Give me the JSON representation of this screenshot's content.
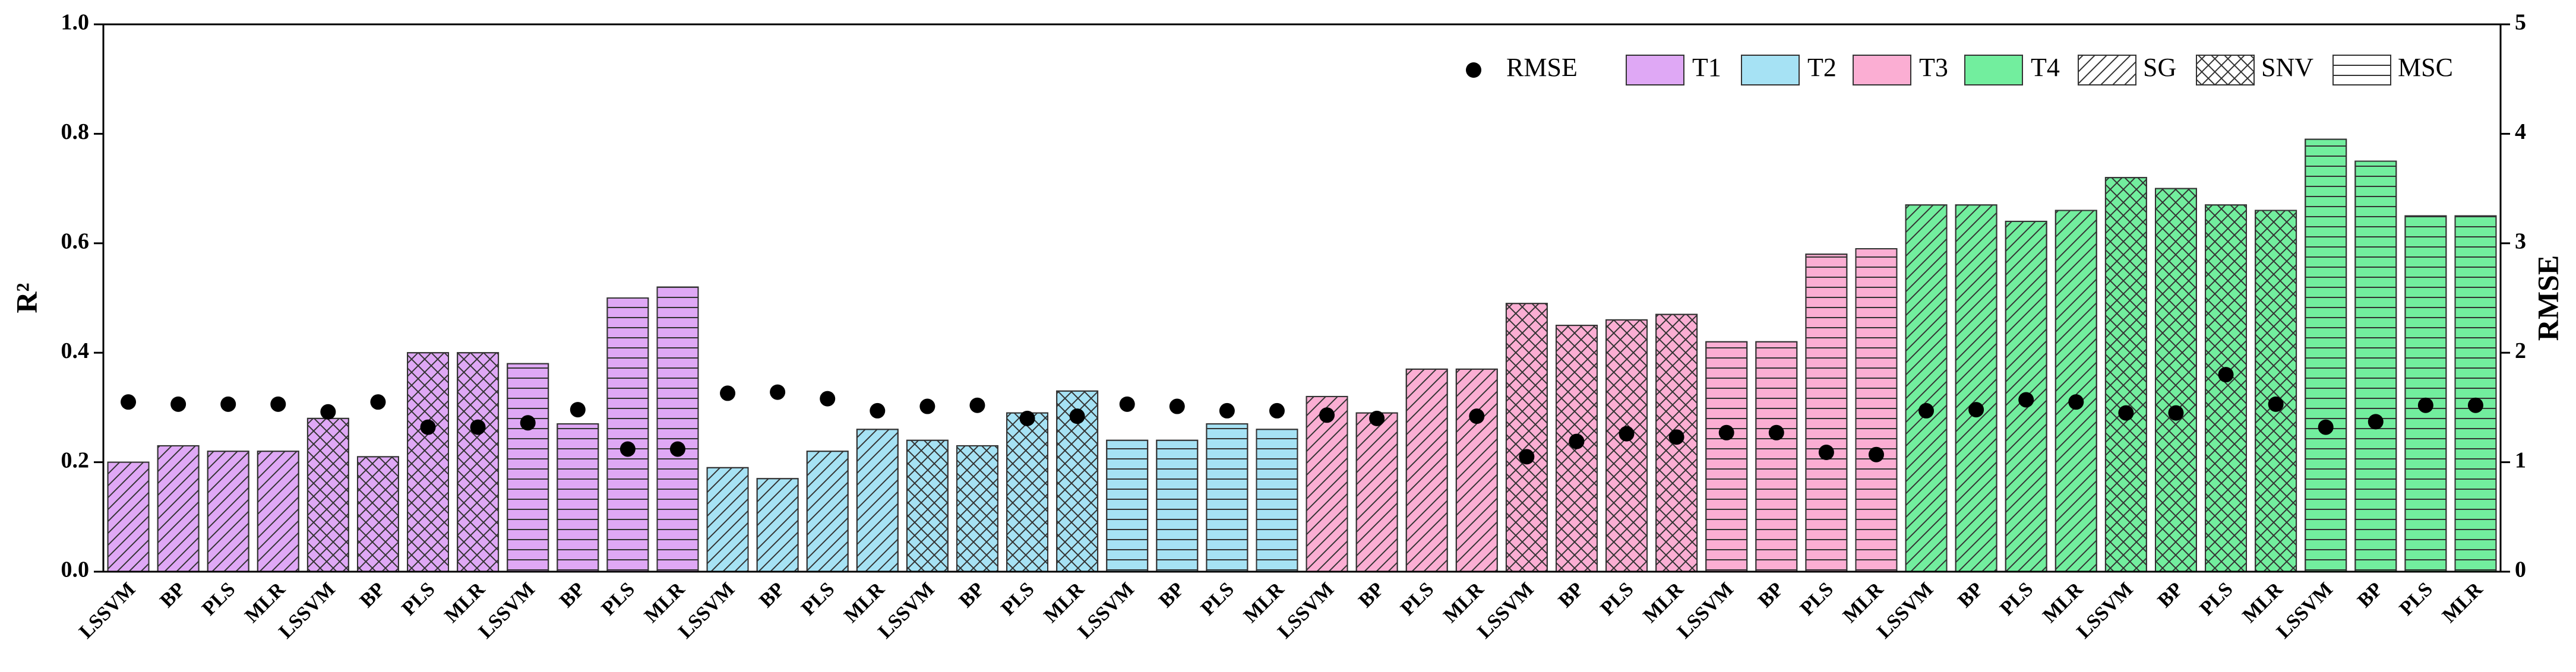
{
  "chart_data": {
    "type": "bar",
    "ylabel": "R²",
    "y2label": "RMSE",
    "categories": [
      "LSSVM",
      "BP",
      "PLS",
      "MLR",
      "LSSVM",
      "BP",
      "PLS",
      "MLR",
      "LSSVM",
      "BP",
      "PLS",
      "MLR",
      "LSSVM",
      "BP",
      "PLS",
      "MLR",
      "LSSVM",
      "BP",
      "PLS",
      "MLR",
      "LSSVM",
      "BP",
      "PLS",
      "MLR",
      "LSSVM",
      "BP",
      "PLS",
      "MLR",
      "LSSVM",
      "BP",
      "PLS",
      "MLR",
      "LSSVM",
      "BP",
      "PLS",
      "MLR",
      "LSSVM",
      "BP",
      "PLS",
      "MLR",
      "LSSVM",
      "BP",
      "PLS",
      "MLR",
      "LSSVM",
      "BP",
      "PLS",
      "MLR"
    ],
    "values": [
      0.2,
      0.23,
      0.22,
      0.22,
      0.28,
      0.21,
      0.4,
      0.4,
      0.38,
      0.27,
      0.5,
      0.52,
      0.19,
      0.17,
      0.22,
      0.26,
      0.24,
      0.23,
      0.29,
      0.33,
      0.24,
      0.24,
      0.27,
      0.26,
      0.32,
      0.29,
      0.37,
      0.37,
      0.49,
      0.45,
      0.46,
      0.47,
      0.42,
      0.42,
      0.58,
      0.59,
      0.67,
      0.67,
      0.64,
      0.66,
      0.72,
      0.7,
      0.67,
      0.66,
      0.79,
      0.75,
      0.65,
      0.65
    ],
    "groups": [
      {
        "name": "T1",
        "color": "#dfa8f5"
      },
      {
        "name": "T2",
        "color": "#a6e2f4"
      },
      {
        "name": "T3",
        "color": "#fbaed3"
      },
      {
        "name": "T4",
        "color": "#72ee9e"
      }
    ],
    "hatches": [
      {
        "name": "SG",
        "pattern": "diagonal"
      },
      {
        "name": "SNV",
        "pattern": "cross"
      },
      {
        "name": "MSC",
        "pattern": "horizontal"
      }
    ],
    "series": [
      {
        "name": "RMSE",
        "axis": "y2",
        "color": "#000000",
        "values": [
          1.55,
          1.53,
          1.53,
          1.53,
          1.46,
          1.55,
          1.32,
          1.32,
          1.36,
          1.48,
          1.12,
          1.12,
          1.63,
          1.64,
          1.58,
          1.47,
          1.51,
          1.52,
          1.4,
          1.42,
          1.53,
          1.51,
          1.47,
          1.47,
          1.43,
          1.4,
          null,
          1.42,
          1.05,
          1.19,
          1.26,
          1.23,
          1.27,
          1.27,
          1.09,
          1.07,
          1.47,
          1.48,
          1.57,
          1.55,
          1.45,
          1.45,
          1.8,
          1.53,
          1.32,
          1.37,
          1.52,
          1.52
        ]
      }
    ],
    "ylim": [
      0,
      1
    ],
    "yticks": [
      {
        "value": 0,
        "label": "0.0"
      },
      0.2,
      0.4,
      0.6,
      0.8,
      {
        "value": 1,
        "label": "1.0"
      }
    ],
    "y2lim": [
      0,
      5
    ],
    "y2ticks": [
      0,
      1,
      2,
      3,
      4,
      5
    ]
  }
}
